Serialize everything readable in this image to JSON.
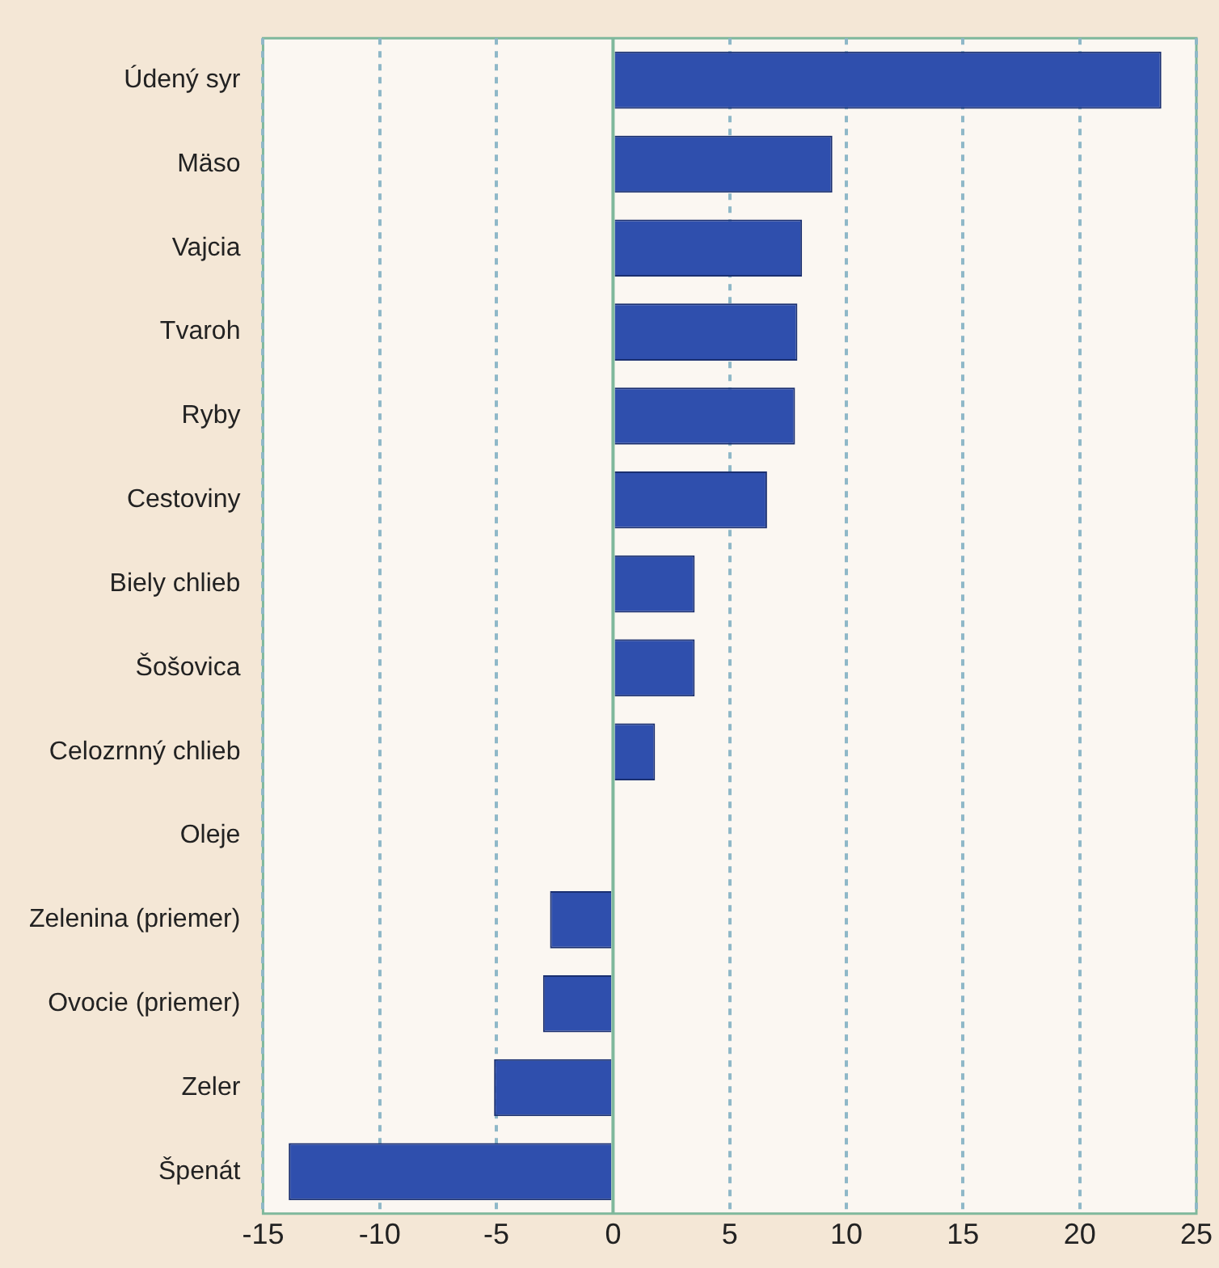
{
  "chart_data": {
    "type": "bar",
    "orientation": "horizontal",
    "categories": [
      "Údený syr",
      "Mäso",
      "Vajcia",
      "Tvaroh",
      "Ryby",
      "Cestoviny",
      "Biely chlieb",
      "Šošovica",
      "Celozrnný chlieb",
      "Oleje",
      "Zelenina (priemer)",
      "Ovocie (priemer)",
      "Zeler",
      "Špenát"
    ],
    "values": [
      23.5,
      9.4,
      8.1,
      7.9,
      7.8,
      6.6,
      3.5,
      3.5,
      1.8,
      null,
      -2.7,
      -3.0,
      -5.1,
      -13.9
    ],
    "color": "#2f4fad",
    "xlim": [
      -15,
      25
    ],
    "xticks": [
      -15,
      -10,
      -5,
      0,
      5,
      10,
      15,
      20,
      25
    ],
    "grid": "x",
    "legend": false,
    "ref_lines": [
      {
        "axis": "x",
        "value": 0,
        "color": "#7fb89c"
      }
    ]
  }
}
